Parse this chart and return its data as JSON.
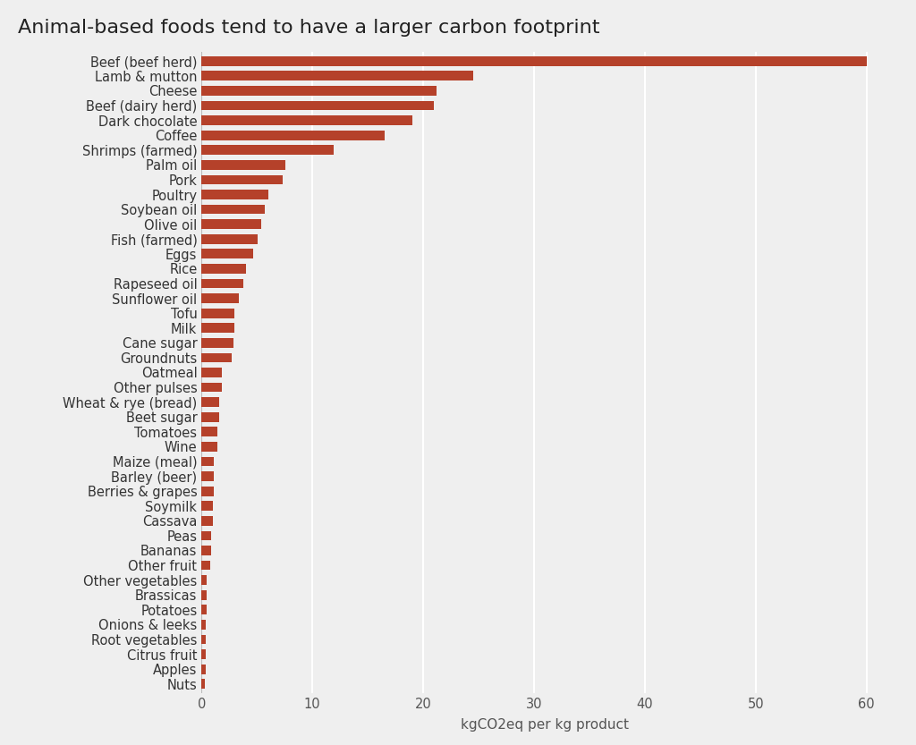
{
  "title": "Animal-based foods tend to have a larger carbon footprint",
  "xlabel": "kgCO2eq per kg product",
  "bar_color": "#b5412a",
  "background_color": "#efefef",
  "grid_color": "#ffffff",
  "text_color": "#333333",
  "axis_label_color": "#555555",
  "categories": [
    "Beef (beef herd)",
    "Lamb & mutton",
    "Cheese",
    "Beef (dairy herd)",
    "Dark chocolate",
    "Coffee",
    "Shrimps (farmed)",
    "Palm oil",
    "Pork",
    "Poultry",
    "Soybean oil",
    "Olive oil",
    "Fish (farmed)",
    "Eggs",
    "Rice",
    "Rapeseed oil",
    "Sunflower oil",
    "Tofu",
    "Milk",
    "Cane sugar",
    "Groundnuts",
    "Oatmeal",
    "Other pulses",
    "Wheat & rye (bread)",
    "Beet sugar",
    "Tomatoes",
    "Wine",
    "Maize (meal)",
    "Barley (beer)",
    "Berries & grapes",
    "Soymilk",
    "Cassava",
    "Peas",
    "Bananas",
    "Other fruit",
    "Other vegetables",
    "Brassicas",
    "Potatoes",
    "Onions & leeks",
    "Root vegetables",
    "Citrus fruit",
    "Apples",
    "Nuts"
  ],
  "values": [
    60.0,
    24.5,
    21.2,
    21.0,
    19.0,
    16.5,
    11.9,
    7.6,
    7.3,
    6.0,
    5.7,
    5.4,
    5.1,
    4.7,
    4.0,
    3.8,
    3.4,
    3.0,
    3.0,
    2.9,
    2.7,
    1.8,
    1.8,
    1.6,
    1.6,
    1.4,
    1.4,
    1.1,
    1.1,
    1.1,
    1.0,
    1.0,
    0.9,
    0.9,
    0.8,
    0.5,
    0.5,
    0.5,
    0.4,
    0.4,
    0.4,
    0.4,
    0.3
  ],
  "xlim": [
    0,
    62
  ],
  "xticks": [
    0,
    10,
    20,
    30,
    40,
    50,
    60
  ],
  "title_fontsize": 16,
  "label_fontsize": 11,
  "tick_fontsize": 10.5
}
